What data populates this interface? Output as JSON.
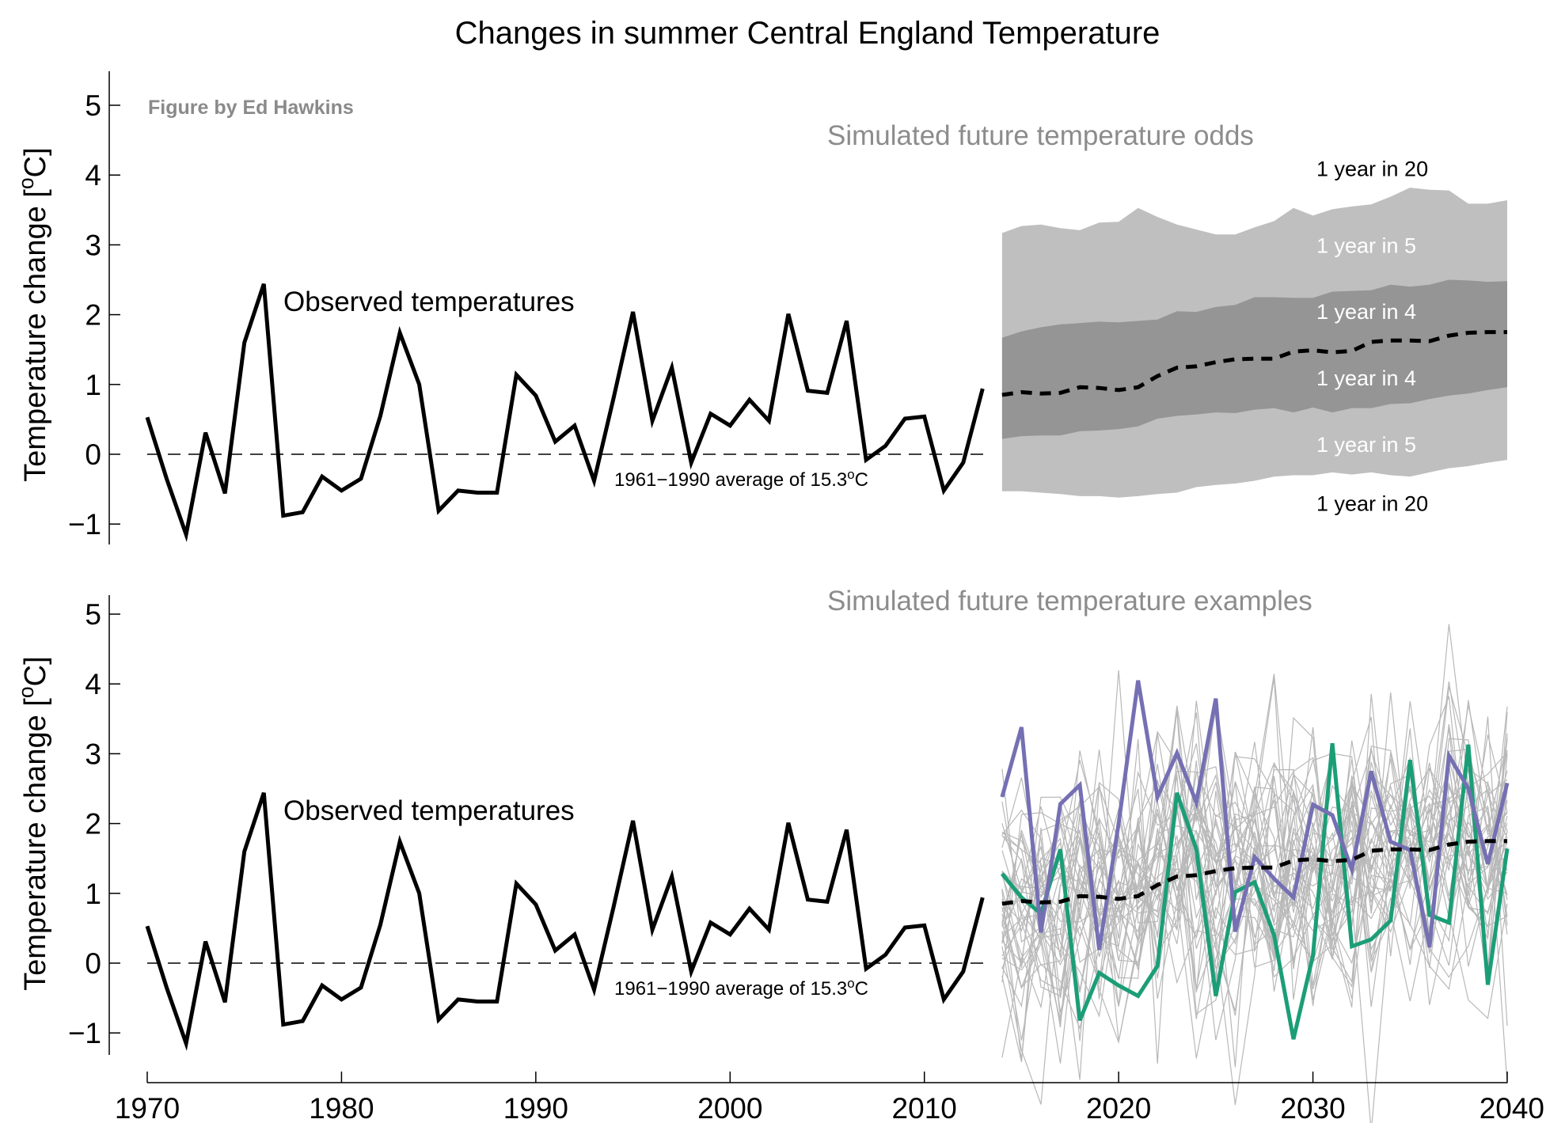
{
  "title": "Changes in summer Central England Temperature",
  "credit": "Figure by Ed Hawkins",
  "colors": {
    "observed": "#000000",
    "band_5_95": "#bfbfbf",
    "band_25_75": "#959595",
    "ensemble": "#b8b8b8",
    "example_purple": "#7570b3",
    "example_green": "#1b9e77",
    "sim_title": "#8c8c8c"
  },
  "chart_data": [
    {
      "type": "line",
      "panel": "top",
      "title": "Simulated future temperature odds",
      "ylabel": "Temperature change",
      "yunit": "oC",
      "xlim": [
        1970,
        2040
      ],
      "ylim": [
        -1.3,
        5.5
      ],
      "yticks": [
        -1,
        0,
        1,
        2,
        3,
        4,
        5
      ],
      "observed_label": "Observed temperatures",
      "baseline_label": "1961−1990 average of 15.3",
      "baseline_unit": "oC",
      "odds_labels": [
        {
          "text": "1 year in 20",
          "y": 4.1,
          "tone": "dark"
        },
        {
          "text": "1 year in 5",
          "y": 3.0,
          "tone": "light"
        },
        {
          "text": "1 year in 4",
          "y": 2.05,
          "tone": "light"
        },
        {
          "text": "1 year in 4",
          "y": 1.1,
          "tone": "light"
        },
        {
          "text": "1 year in 5",
          "y": 0.15,
          "tone": "light"
        },
        {
          "text": "1 year in 20",
          "y": -0.7,
          "tone": "dark"
        }
      ],
      "series": [
        {
          "name": "Observed temperatures",
          "x": [
            1970,
            1971,
            1972,
            1973,
            1974,
            1975,
            1976,
            1977,
            1978,
            1979,
            1980,
            1981,
            1982,
            1983,
            1984,
            1985,
            1986,
            1987,
            1988,
            1989,
            1990,
            1991,
            1992,
            1993,
            1994,
            1995,
            1996,
            1997,
            1998,
            1999,
            2000,
            2001,
            2002,
            2003,
            2004,
            2005,
            2006,
            2007,
            2008,
            2009,
            2010,
            2011,
            2012,
            2013
          ],
          "y": [
            0.53,
            -0.35,
            -1.15,
            0.31,
            -0.56,
            1.6,
            2.44,
            -0.88,
            -0.83,
            -0.32,
            -0.52,
            -0.35,
            0.55,
            1.74,
            1.0,
            -0.81,
            -0.52,
            -0.55,
            -0.55,
            1.14,
            0.84,
            0.18,
            0.41,
            -0.38,
            0.8,
            2.04,
            0.48,
            1.24,
            -0.12,
            0.58,
            0.41,
            0.78,
            0.48,
            2.01,
            0.91,
            0.88,
            1.91,
            -0.08,
            0.12,
            0.51,
            0.54,
            -0.52,
            -0.12,
            0.94
          ]
        }
      ],
      "projection": {
        "x": [
          2014,
          2015,
          2016,
          2017,
          2018,
          2019,
          2020,
          2021,
          2022,
          2023,
          2024,
          2025,
          2026,
          2027,
          2028,
          2029,
          2030,
          2031,
          2032,
          2033,
          2034,
          2035,
          2036,
          2037,
          2038,
          2039,
          2040
        ],
        "median": [
          0.85,
          0.89,
          0.87,
          0.88,
          0.96,
          0.95,
          0.92,
          0.96,
          1.12,
          1.24,
          1.26,
          1.32,
          1.36,
          1.37,
          1.37,
          1.47,
          1.49,
          1.46,
          1.48,
          1.61,
          1.63,
          1.63,
          1.62,
          1.7,
          1.74,
          1.75,
          1.75
        ],
        "p05": [
          -0.53,
          -0.53,
          -0.55,
          -0.57,
          -0.6,
          -0.6,
          -0.62,
          -0.6,
          -0.57,
          -0.55,
          -0.47,
          -0.44,
          -0.42,
          -0.38,
          -0.32,
          -0.3,
          -0.3,
          -0.26,
          -0.29,
          -0.26,
          -0.3,
          -0.32,
          -0.26,
          -0.2,
          -0.17,
          -0.12,
          -0.08
        ],
        "p95": [
          3.17,
          3.27,
          3.29,
          3.24,
          3.21,
          3.32,
          3.33,
          3.53,
          3.4,
          3.29,
          3.22,
          3.15,
          3.15,
          3.25,
          3.34,
          3.53,
          3.42,
          3.51,
          3.55,
          3.58,
          3.69,
          3.82,
          3.79,
          3.78,
          3.59,
          3.59,
          3.64
        ],
        "p20": [
          0.22,
          0.26,
          0.27,
          0.27,
          0.33,
          0.34,
          0.36,
          0.4,
          0.51,
          0.55,
          0.57,
          0.6,
          0.59,
          0.64,
          0.66,
          0.6,
          0.67,
          0.6,
          0.66,
          0.66,
          0.72,
          0.73,
          0.79,
          0.84,
          0.87,
          0.92,
          0.96
        ],
        "p80": [
          1.67,
          1.76,
          1.82,
          1.86,
          1.88,
          1.9,
          1.89,
          1.91,
          1.93,
          2.05,
          2.04,
          2.11,
          2.14,
          2.25,
          2.25,
          2.24,
          2.24,
          2.33,
          2.34,
          2.35,
          2.43,
          2.4,
          2.43,
          2.5,
          2.49,
          2.47,
          2.48
        ]
      }
    },
    {
      "type": "line",
      "panel": "bottom",
      "title": "Simulated future temperature examples",
      "ylabel": "Temperature change",
      "yunit": "oC",
      "xlim": [
        1970,
        2040
      ],
      "ylim": [
        -1.3,
        5.5
      ],
      "yticks": [
        -1,
        0,
        1,
        2,
        3,
        4,
        5
      ],
      "xticks": [
        1970,
        1980,
        1990,
        2000,
        2010,
        2020,
        2030,
        2040
      ],
      "observed_label": "Observed temperatures",
      "baseline_label": "1961−1990 average of 15.3",
      "baseline_unit": "oC",
      "ensemble_count": 40,
      "series": [
        {
          "name": "Observed temperatures",
          "x": [
            1970,
            1971,
            1972,
            1973,
            1974,
            1975,
            1976,
            1977,
            1978,
            1979,
            1980,
            1981,
            1982,
            1983,
            1984,
            1985,
            1986,
            1987,
            1988,
            1989,
            1990,
            1991,
            1992,
            1993,
            1994,
            1995,
            1996,
            1997,
            1998,
            1999,
            2000,
            2001,
            2002,
            2003,
            2004,
            2005,
            2006,
            2007,
            2008,
            2009,
            2010,
            2011,
            2012,
            2013
          ],
          "y": [
            0.53,
            -0.35,
            -1.15,
            0.31,
            -0.56,
            1.6,
            2.44,
            -0.88,
            -0.83,
            -0.32,
            -0.52,
            -0.35,
            0.55,
            1.74,
            1.0,
            -0.81,
            -0.52,
            -0.55,
            -0.55,
            1.14,
            0.84,
            0.18,
            0.41,
            -0.38,
            0.8,
            2.04,
            0.48,
            1.24,
            -0.12,
            0.58,
            0.41,
            0.78,
            0.48,
            2.01,
            0.91,
            0.88,
            1.91,
            -0.08,
            0.12,
            0.51,
            0.54,
            -0.52,
            -0.12,
            0.94
          ]
        },
        {
          "role": "example_purple",
          "x": [
            2014,
            2015,
            2016,
            2017,
            2018,
            2019,
            2020,
            2021,
            2022,
            2023,
            2024,
            2025,
            2026,
            2027,
            2028,
            2029,
            2030,
            2031,
            2032,
            2033,
            2034,
            2035,
            2036,
            2037,
            2038,
            2039,
            2040
          ],
          "y": [
            2.38,
            3.38,
            0.44,
            2.28,
            2.55,
            0.19,
            2.0,
            4.05,
            2.38,
            3.01,
            2.3,
            3.79,
            0.45,
            1.52,
            1.21,
            0.94,
            2.27,
            2.12,
            1.34,
            2.75,
            1.74,
            1.62,
            0.23,
            2.97,
            2.5,
            1.42,
            2.58
          ]
        },
        {
          "role": "example_green",
          "x": [
            2014,
            2015,
            2016,
            2017,
            2018,
            2019,
            2020,
            2021,
            2022,
            2023,
            2024,
            2025,
            2026,
            2027,
            2028,
            2029,
            2030,
            2031,
            2032,
            2033,
            2034,
            2035,
            2036,
            2037,
            2038,
            2039,
            2040
          ],
          "y": [
            1.28,
            0.94,
            0.71,
            1.63,
            -0.82,
            -0.14,
            -0.32,
            -0.47,
            -0.04,
            2.44,
            1.63,
            -0.47,
            1.02,
            1.16,
            0.4,
            -1.09,
            0.11,
            3.15,
            0.24,
            0.34,
            0.61,
            2.91,
            0.69,
            0.58,
            3.13,
            -0.31,
            1.64
          ]
        },
        {
          "role": "median",
          "x": [
            2014,
            2015,
            2016,
            2017,
            2018,
            2019,
            2020,
            2021,
            2022,
            2023,
            2024,
            2025,
            2026,
            2027,
            2028,
            2029,
            2030,
            2031,
            2032,
            2033,
            2034,
            2035,
            2036,
            2037,
            2038,
            2039,
            2040
          ],
          "y": [
            0.85,
            0.89,
            0.87,
            0.88,
            0.96,
            0.95,
            0.92,
            0.96,
            1.12,
            1.24,
            1.26,
            1.32,
            1.36,
            1.37,
            1.37,
            1.47,
            1.49,
            1.46,
            1.48,
            1.61,
            1.63,
            1.63,
            1.62,
            1.7,
            1.74,
            1.75,
            1.75
          ]
        }
      ]
    }
  ]
}
